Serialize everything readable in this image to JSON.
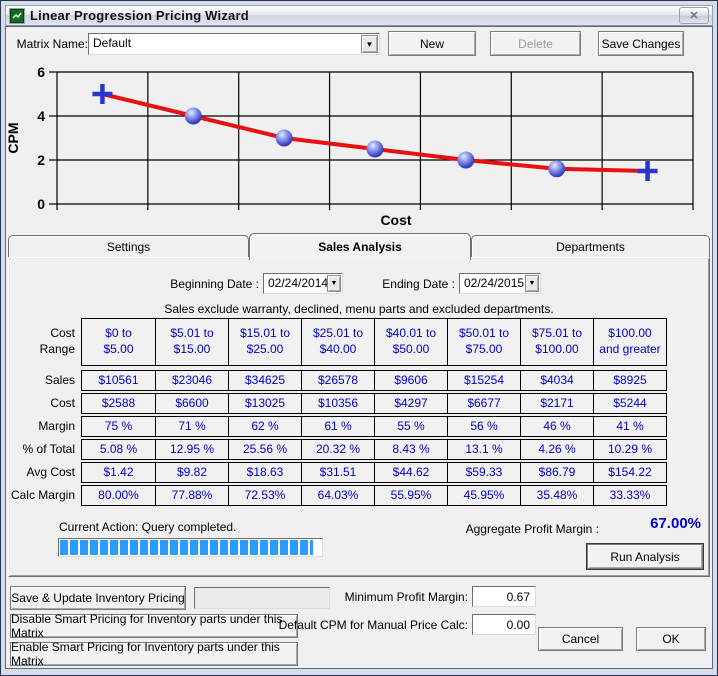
{
  "window": {
    "title": "Linear Progression Pricing Wizard"
  },
  "icons": {
    "close": "✕",
    "dropdown_arrow": "▼"
  },
  "colors": {
    "data_text": "#0000cc",
    "line": "#e81111",
    "marker": "#2a35cf",
    "progress_fill": "#2e9bfe"
  },
  "toolbar": {
    "matrix_name_label": "Matrix Name:",
    "matrix_name_value": "Default",
    "new_label": "New",
    "delete_label": "Delete",
    "save_changes_label": "Save Changes"
  },
  "chart_data": {
    "type": "line",
    "title": "",
    "xlabel": "Cost",
    "ylabel": "CPM",
    "ylim": [
      0,
      6
    ],
    "yticks": [
      0,
      2,
      4,
      6
    ],
    "grid": true,
    "x_gridline_count": 8,
    "line_color": "#e81111",
    "marker_color": "#2a35cf",
    "points": [
      {
        "x_slot": 0,
        "cpm": 5.0,
        "marker": "plus"
      },
      {
        "x_slot": 1,
        "cpm": 4.0,
        "marker": "sphere"
      },
      {
        "x_slot": 2,
        "cpm": 3.0,
        "marker": "sphere"
      },
      {
        "x_slot": 3,
        "cpm": 2.5,
        "marker": "sphere"
      },
      {
        "x_slot": 4,
        "cpm": 2.0,
        "marker": "sphere"
      },
      {
        "x_slot": 5,
        "cpm": 1.6,
        "marker": "sphere"
      },
      {
        "x_slot": 6,
        "cpm": 1.5,
        "marker": "plus"
      }
    ]
  },
  "tabs": [
    {
      "label": "Settings",
      "active": false
    },
    {
      "label": "Sales Analysis",
      "active": true
    },
    {
      "label": "Departments",
      "active": false
    }
  ],
  "sales_analysis": {
    "beginning_date_label": "Beginning Date :",
    "beginning_date_value": "02/24/2014",
    "ending_date_label": "Ending Date :",
    "ending_date_value": "02/24/2015",
    "note": "Sales exclude warranty, declined, menu parts and excluded departments.",
    "table": {
      "corner_label": [
        "Cost",
        "Range"
      ],
      "headers": [
        [
          "$0 to",
          "$5.00"
        ],
        [
          "$5.01 to",
          "$15.00"
        ],
        [
          "$15.01 to",
          "$25.00"
        ],
        [
          "$25.01 to",
          "$40.00"
        ],
        [
          "$40.01 to",
          "$50.00"
        ],
        [
          "$50.01 to",
          "$75.00"
        ],
        [
          "$75.01 to",
          "$100.00"
        ],
        [
          "$100.00",
          "and greater"
        ]
      ],
      "rows": [
        {
          "label": "Sales",
          "values": [
            "$10561",
            "$23046",
            "$34625",
            "$26578",
            "$9606",
            "$15254",
            "$4034",
            "$8925"
          ]
        },
        {
          "label": "Cost",
          "values": [
            "$2588",
            "$6600",
            "$13025",
            "$10356",
            "$4297",
            "$6677",
            "$2171",
            "$5244"
          ]
        },
        {
          "label": "Margin",
          "values": [
            "75 %",
            "71 %",
            "62 %",
            "61 %",
            "55 %",
            "56 %",
            "46 %",
            "41 %"
          ]
        },
        {
          "label": "% of Total",
          "values": [
            "5.08 %",
            "12.95 %",
            "25.56 %",
            "20.32 %",
            "8.43 %",
            "13.1 %",
            "4.26 %",
            "10.29 %"
          ]
        },
        {
          "label": "Avg Cost",
          "values": [
            "$1.42",
            "$9.82",
            "$18.63",
            "$31.51",
            "$44.62",
            "$59.33",
            "$86.79",
            "$154.22"
          ]
        },
        {
          "label": "Calc Margin",
          "values": [
            "80.00%",
            "77.88%",
            "72.53%",
            "64.03%",
            "55.95%",
            "45.95%",
            "35.48%",
            "33.33%"
          ]
        }
      ]
    },
    "current_action": "Current Action: Query completed.",
    "progress_percent": 97,
    "aggregate_label": "Aggregate Profit Margin :",
    "aggregate_value": "67.00%",
    "run_analysis_label": "Run Analysis"
  },
  "footer": {
    "save_update_label": "Save & Update Inventory Pricing",
    "disable_smart_label": "Disable Smart Pricing for Inventory parts under this Matrix",
    "enable_smart_label": "Enable Smart Pricing for Inventory parts under this Matrix",
    "min_profit_label": "Minimum Profit Margin:",
    "min_profit_value": "0.67",
    "default_cpm_label": "Default CPM for Manual Price Calc:",
    "default_cpm_value": "0.00",
    "cancel_label": "Cancel",
    "ok_label": "OK"
  }
}
